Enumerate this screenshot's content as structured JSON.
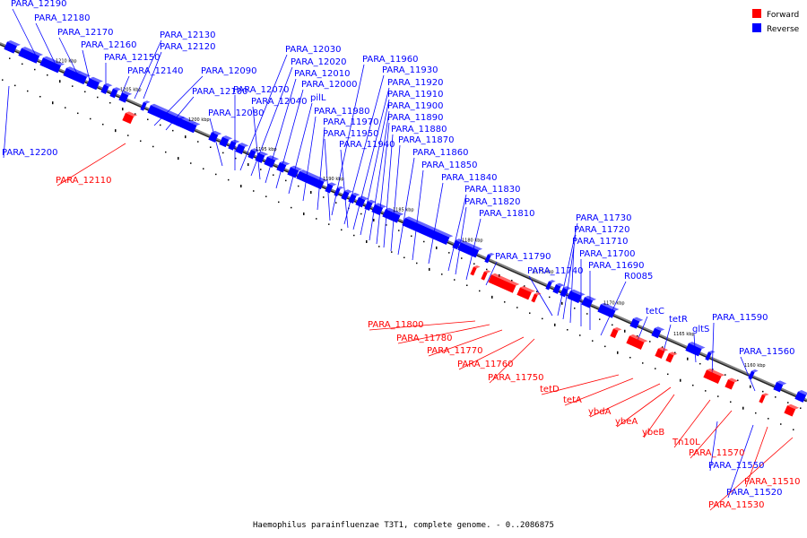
{
  "caption": "Haemophilus parainfluenzae T3T1, complete genome. - 0..2086875",
  "legend": [
    {
      "label": "Forward",
      "color": "#ff0000"
    },
    {
      "label": "Reverse",
      "color": "#0000ff"
    }
  ],
  "colors": {
    "forward": "#ff0000",
    "reverse": "#0000ff",
    "backbone": "#808080"
  },
  "kbp_labels": [
    "1210 kbp",
    "1205 kbp",
    "1200 kbp",
    "1195 kbp",
    "1190 kbp",
    "1185 kbp",
    "1180 kbp",
    "1175 kbp",
    "1170 kbp",
    "1165 kbp",
    "1160 kbp"
  ],
  "reverse_labels": [
    "PARA_12190",
    "PARA_12180",
    "PARA_12170",
    "PARA_12160",
    "PARA_12150",
    "PARA_12140",
    "PARA_12130",
    "PARA_12120",
    "PARA_12090",
    "PARA_12100",
    "PARA_12080",
    "PARA_12070",
    "PARA_12040",
    "PARA_12030",
    "PARA_12020",
    "PARA_12010",
    "PARA_12000",
    "pilL",
    "PARA_11980",
    "PARA_11970",
    "PARA_11960",
    "PARA_11950",
    "PARA_11940",
    "PARA_11930",
    "PARA_11920",
    "PARA_11910",
    "PARA_11900",
    "PARA_11890",
    "PARA_11880",
    "PARA_11870",
    "PARA_11860",
    "PARA_11850",
    "PARA_11840",
    "PARA_11830",
    "PARA_11820",
    "PARA_11810",
    "PARA_11790",
    "PARA_11740",
    "PARA_11730",
    "PARA_11720",
    "PARA_11710",
    "PARA_11700",
    "PARA_11690",
    "R0085",
    "tetC",
    "tetR",
    "gltS",
    "PARA_11590",
    "PARA_11560",
    "PARA_12200",
    "PARA_11550",
    "PARA_11520"
  ],
  "forward_labels": [
    "PARA_12110",
    "PARA_11800",
    "PARA_11780",
    "PARA_11770",
    "PARA_11760",
    "PARA_11750",
    "tetD",
    "tetA",
    "ybdA",
    "ybeA",
    "ybeB",
    "Tn10L",
    "PARA_11570",
    "PARA_11510",
    "PARA_11530"
  ]
}
